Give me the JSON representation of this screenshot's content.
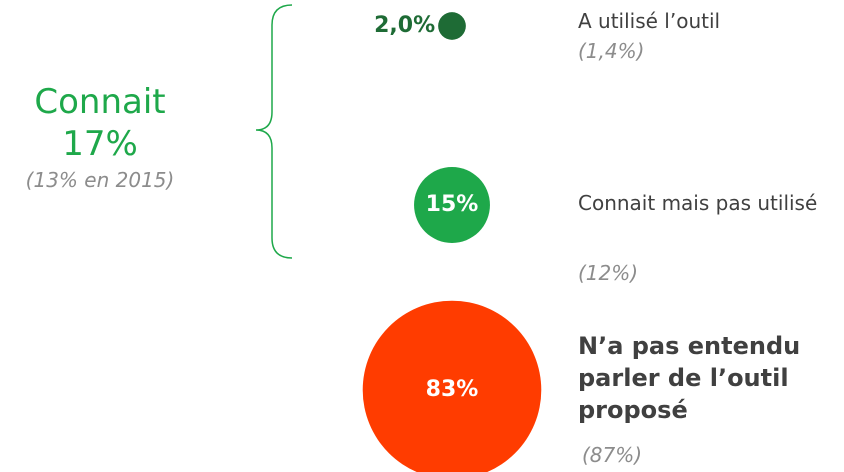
{
  "chart_data": {
    "type": "bubble",
    "categories": [
      "A utilisé l’outil",
      "Connait mais pas utilisé",
      "N’a pas entendu parler de l’outil proposé"
    ],
    "values": [
      2.0,
      15,
      83
    ],
    "value_labels": [
      "2,0%",
      "15%",
      "83%"
    ],
    "colors": [
      "#1e6b35",
      "#1ea84a",
      "#ff3c00"
    ],
    "previous_values": [
      1.4,
      12,
      87
    ],
    "previous_labels": [
      "(1,4%)",
      "(12%)",
      "(87%)"
    ],
    "group": {
      "label": "Connait",
      "value": 17,
      "value_label": "17%",
      "note": "(13% en 2015)",
      "color": "#1ea84a"
    }
  }
}
